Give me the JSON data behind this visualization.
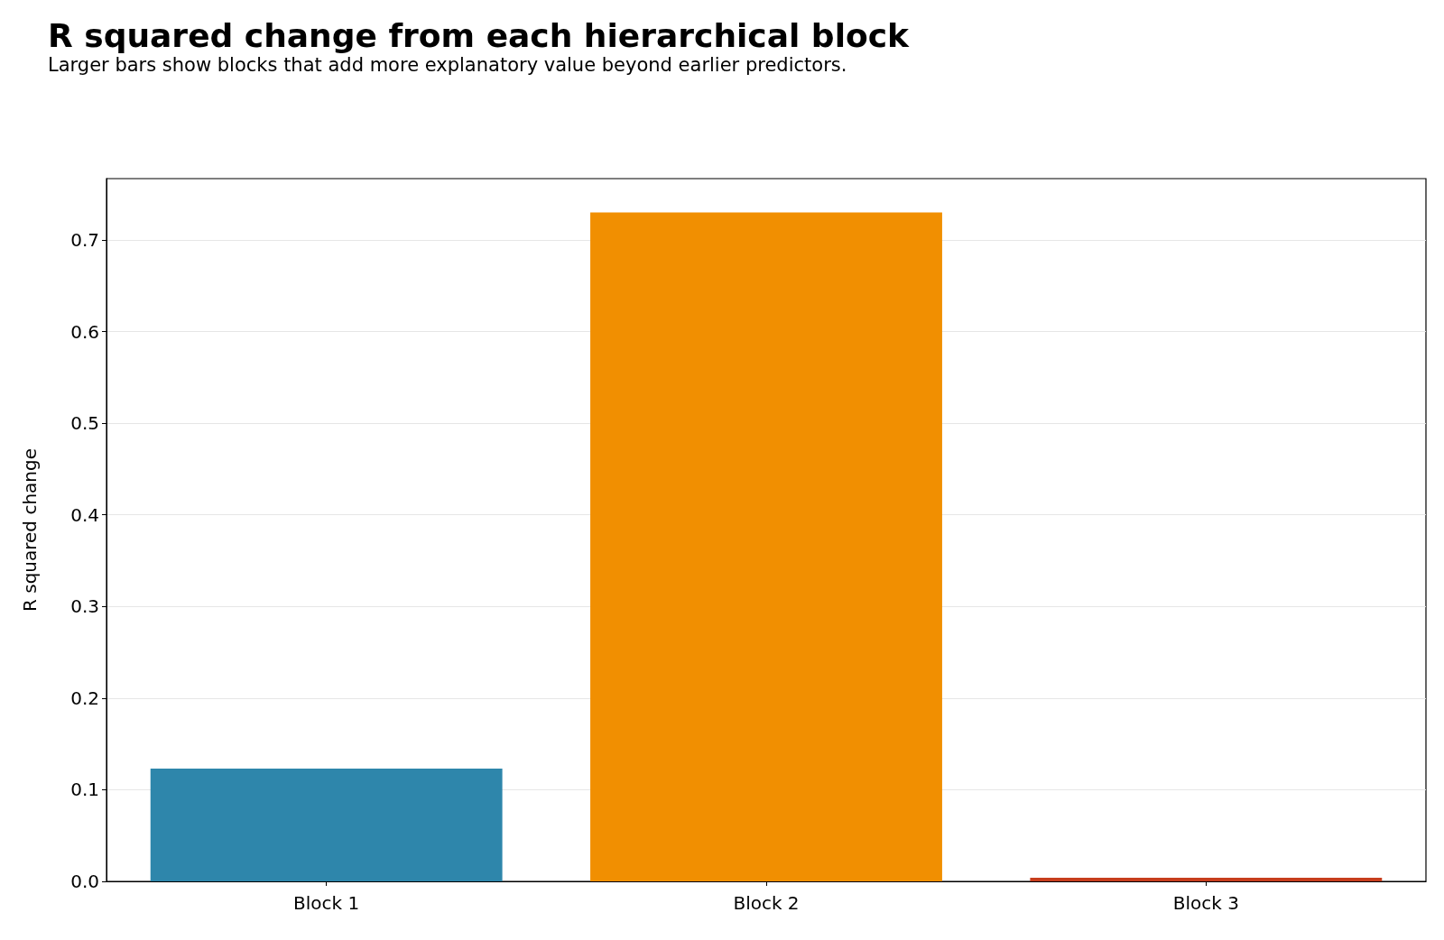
{
  "chart_data": {
    "type": "bar",
    "title": "R squared change from each hierarchical block",
    "subtitle": "Larger bars show blocks that add more explanatory value beyond earlier predictors.",
    "ylabel": "R squared change",
    "categories": [
      "Block 1",
      "Block 2",
      "Block 3"
    ],
    "values": [
      0.123,
      0.73,
      0.004
    ],
    "colors": [
      "#2e86ab",
      "#f18f01",
      "#c73e1d"
    ],
    "ylim": [
      0,
      0.767
    ],
    "yticks": [
      {
        "value": 0,
        "label": "0.0"
      },
      0.1,
      0.2,
      0.3,
      0.4,
      0.5,
      0.6,
      0.7
    ],
    "grid": "y"
  }
}
